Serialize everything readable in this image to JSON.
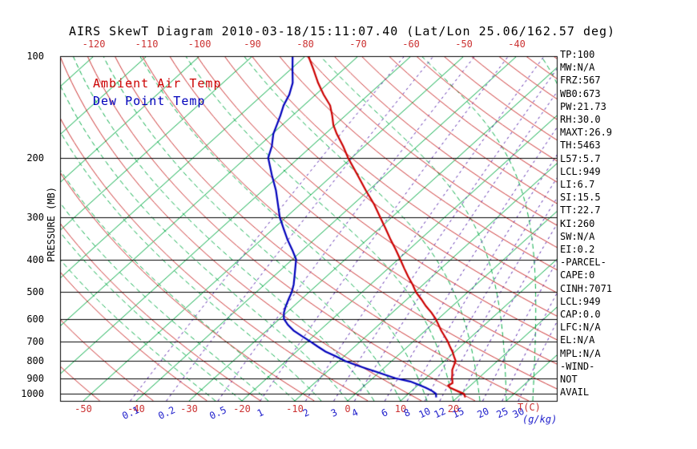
{
  "title": "AIRS SkewT Diagram 2010-03-18/15:11:07.40 (Lat/Lon 25.06/162.57 deg)",
  "legend": {
    "ambient": "Ambient Air Temp",
    "dewpoint": "Dew Point Temp"
  },
  "y_axis_label": "PRESSURE (MB)",
  "x_axis": {
    "temp_unit_label": "T(C)",
    "mixing_unit_label": "(g/kg)"
  },
  "colors": {
    "isotherm_green": "#00aa44",
    "dry_adiabat_red": "#cc3333",
    "mixing_purple": "#5522aa",
    "axis_black": "#000000",
    "label_blue": "#2222cc",
    "temp_curve_red": "#cc0000",
    "dew_curve_blue": "#0000bb"
  },
  "stats_panel": [
    "TP:100",
    "MW:N/A",
    "FRZ:567",
    "WB0:673",
    "PW:21.73",
    "RH:30.0",
    "MAXT:26.9",
    "TH:5463",
    "L57:5.7",
    "LCL:949",
    "LI:6.7",
    "SI:15.5",
    "TT:22.7",
    "KI:260",
    "SW:N/A",
    "EI:0.2",
    "-PARCEL-",
    "CAPE:0",
    "CINH:7071",
    "LCL:949",
    "CAP:0.0",
    "LFC:N/A",
    "EL:N/A",
    "MPL:N/A",
    "-WIND-",
    "NOT",
    "AVAIL"
  ],
  "chart_data": {
    "type": "line",
    "title": "AIRS SkewT Diagram 2010-03-18/15:11:07.40 (Lat/Lon 25.06/162.57 deg)",
    "xlabel": "T(C)",
    "ylabel": "PRESSURE (MB)",
    "y_scale": "log",
    "pressure_range": [
      100,
      1050
    ],
    "pressure_ticks": [
      100,
      200,
      300,
      400,
      500,
      600,
      700,
      800,
      900,
      1000
    ],
    "top_temp_labels": [
      -120,
      -110,
      -100,
      -90,
      -80,
      -70,
      -60,
      -50,
      -40
    ],
    "bottom_temp_labels": [
      -50,
      -40,
      -30,
      -20,
      -10,
      0,
      10,
      20
    ],
    "isotherms_c": {
      "min": -120,
      "max": 40,
      "step": 10
    },
    "dry_adiabats_theta_c": {
      "min": -50,
      "max": 200,
      "step": 10
    },
    "moist_adiabats_start_c": {
      "min": -25,
      "max": 40,
      "step": 5
    },
    "mixing_ratio_g_kg": [
      0.1,
      0.2,
      0.5,
      1,
      2,
      3,
      4,
      6,
      8,
      10,
      12,
      15,
      20,
      25,
      30
    ],
    "series": [
      {
        "name": "Ambient Air Temp",
        "color": "#cc0000",
        "points_p_t": [
          [
            1025,
            21.5
          ],
          [
            1000,
            20.5
          ],
          [
            980,
            18.6
          ],
          [
            960,
            16.6
          ],
          [
            945,
            15.8
          ],
          [
            930,
            16.1
          ],
          [
            915,
            15.6
          ],
          [
            900,
            15.0
          ],
          [
            875,
            14.2
          ],
          [
            850,
            13.3
          ],
          [
            825,
            12.7
          ],
          [
            800,
            12.1
          ],
          [
            775,
            10.8
          ],
          [
            750,
            9.5
          ],
          [
            725,
            8.0
          ],
          [
            700,
            6.5
          ],
          [
            675,
            4.8
          ],
          [
            650,
            3.0
          ],
          [
            625,
            1.3
          ],
          [
            600,
            -0.5
          ],
          [
            575,
            -2.6
          ],
          [
            550,
            -5.0
          ],
          [
            525,
            -7.3
          ],
          [
            500,
            -9.8
          ],
          [
            475,
            -12.0
          ],
          [
            450,
            -14.5
          ],
          [
            425,
            -17.0
          ],
          [
            400,
            -19.6
          ],
          [
            375,
            -22.4
          ],
          [
            350,
            -25.5
          ],
          [
            325,
            -28.7
          ],
          [
            300,
            -32.2
          ],
          [
            275,
            -36.0
          ],
          [
            250,
            -40.5
          ],
          [
            225,
            -45.3
          ],
          [
            200,
            -50.7
          ],
          [
            185,
            -54.0
          ],
          [
            170,
            -57.8
          ],
          [
            160,
            -60.3
          ],
          [
            150,
            -62.5
          ],
          [
            140,
            -65.0
          ],
          [
            130,
            -68.5
          ],
          [
            120,
            -72.0
          ],
          [
            110,
            -75.5
          ],
          [
            100,
            -79.4
          ]
        ]
      },
      {
        "name": "Dew Point Temp",
        "color": "#0000bb",
        "points_p_t": [
          [
            1025,
            16.0
          ],
          [
            1000,
            15.2
          ],
          [
            980,
            13.8
          ],
          [
            960,
            12.0
          ],
          [
            940,
            10.0
          ],
          [
            920,
            7.8
          ],
          [
            900,
            4.3
          ],
          [
            880,
            1.8
          ],
          [
            860,
            -0.8
          ],
          [
            840,
            -3.5
          ],
          [
            820,
            -6.2
          ],
          [
            800,
            -8.8
          ],
          [
            775,
            -11.5
          ],
          [
            750,
            -14.5
          ],
          [
            725,
            -17.0
          ],
          [
            700,
            -19.5
          ],
          [
            675,
            -22.2
          ],
          [
            650,
            -24.9
          ],
          [
            625,
            -27.2
          ],
          [
            600,
            -29.2
          ],
          [
            575,
            -30.5
          ],
          [
            550,
            -31.5
          ],
          [
            525,
            -32.4
          ],
          [
            500,
            -33.3
          ],
          [
            475,
            -34.5
          ],
          [
            450,
            -36.0
          ],
          [
            425,
            -37.6
          ],
          [
            400,
            -39.3
          ],
          [
            375,
            -42.0
          ],
          [
            350,
            -45.0
          ],
          [
            325,
            -48.0
          ],
          [
            300,
            -51.2
          ],
          [
            275,
            -54.2
          ],
          [
            250,
            -57.5
          ],
          [
            225,
            -61.5
          ],
          [
            200,
            -65.8
          ],
          [
            185,
            -67.5
          ],
          [
            170,
            -69.8
          ],
          [
            160,
            -71.0
          ],
          [
            150,
            -72.3
          ],
          [
            140,
            -73.8
          ],
          [
            130,
            -75.0
          ],
          [
            120,
            -76.8
          ],
          [
            110,
            -79.5
          ],
          [
            100,
            -82.4
          ]
        ]
      }
    ]
  }
}
